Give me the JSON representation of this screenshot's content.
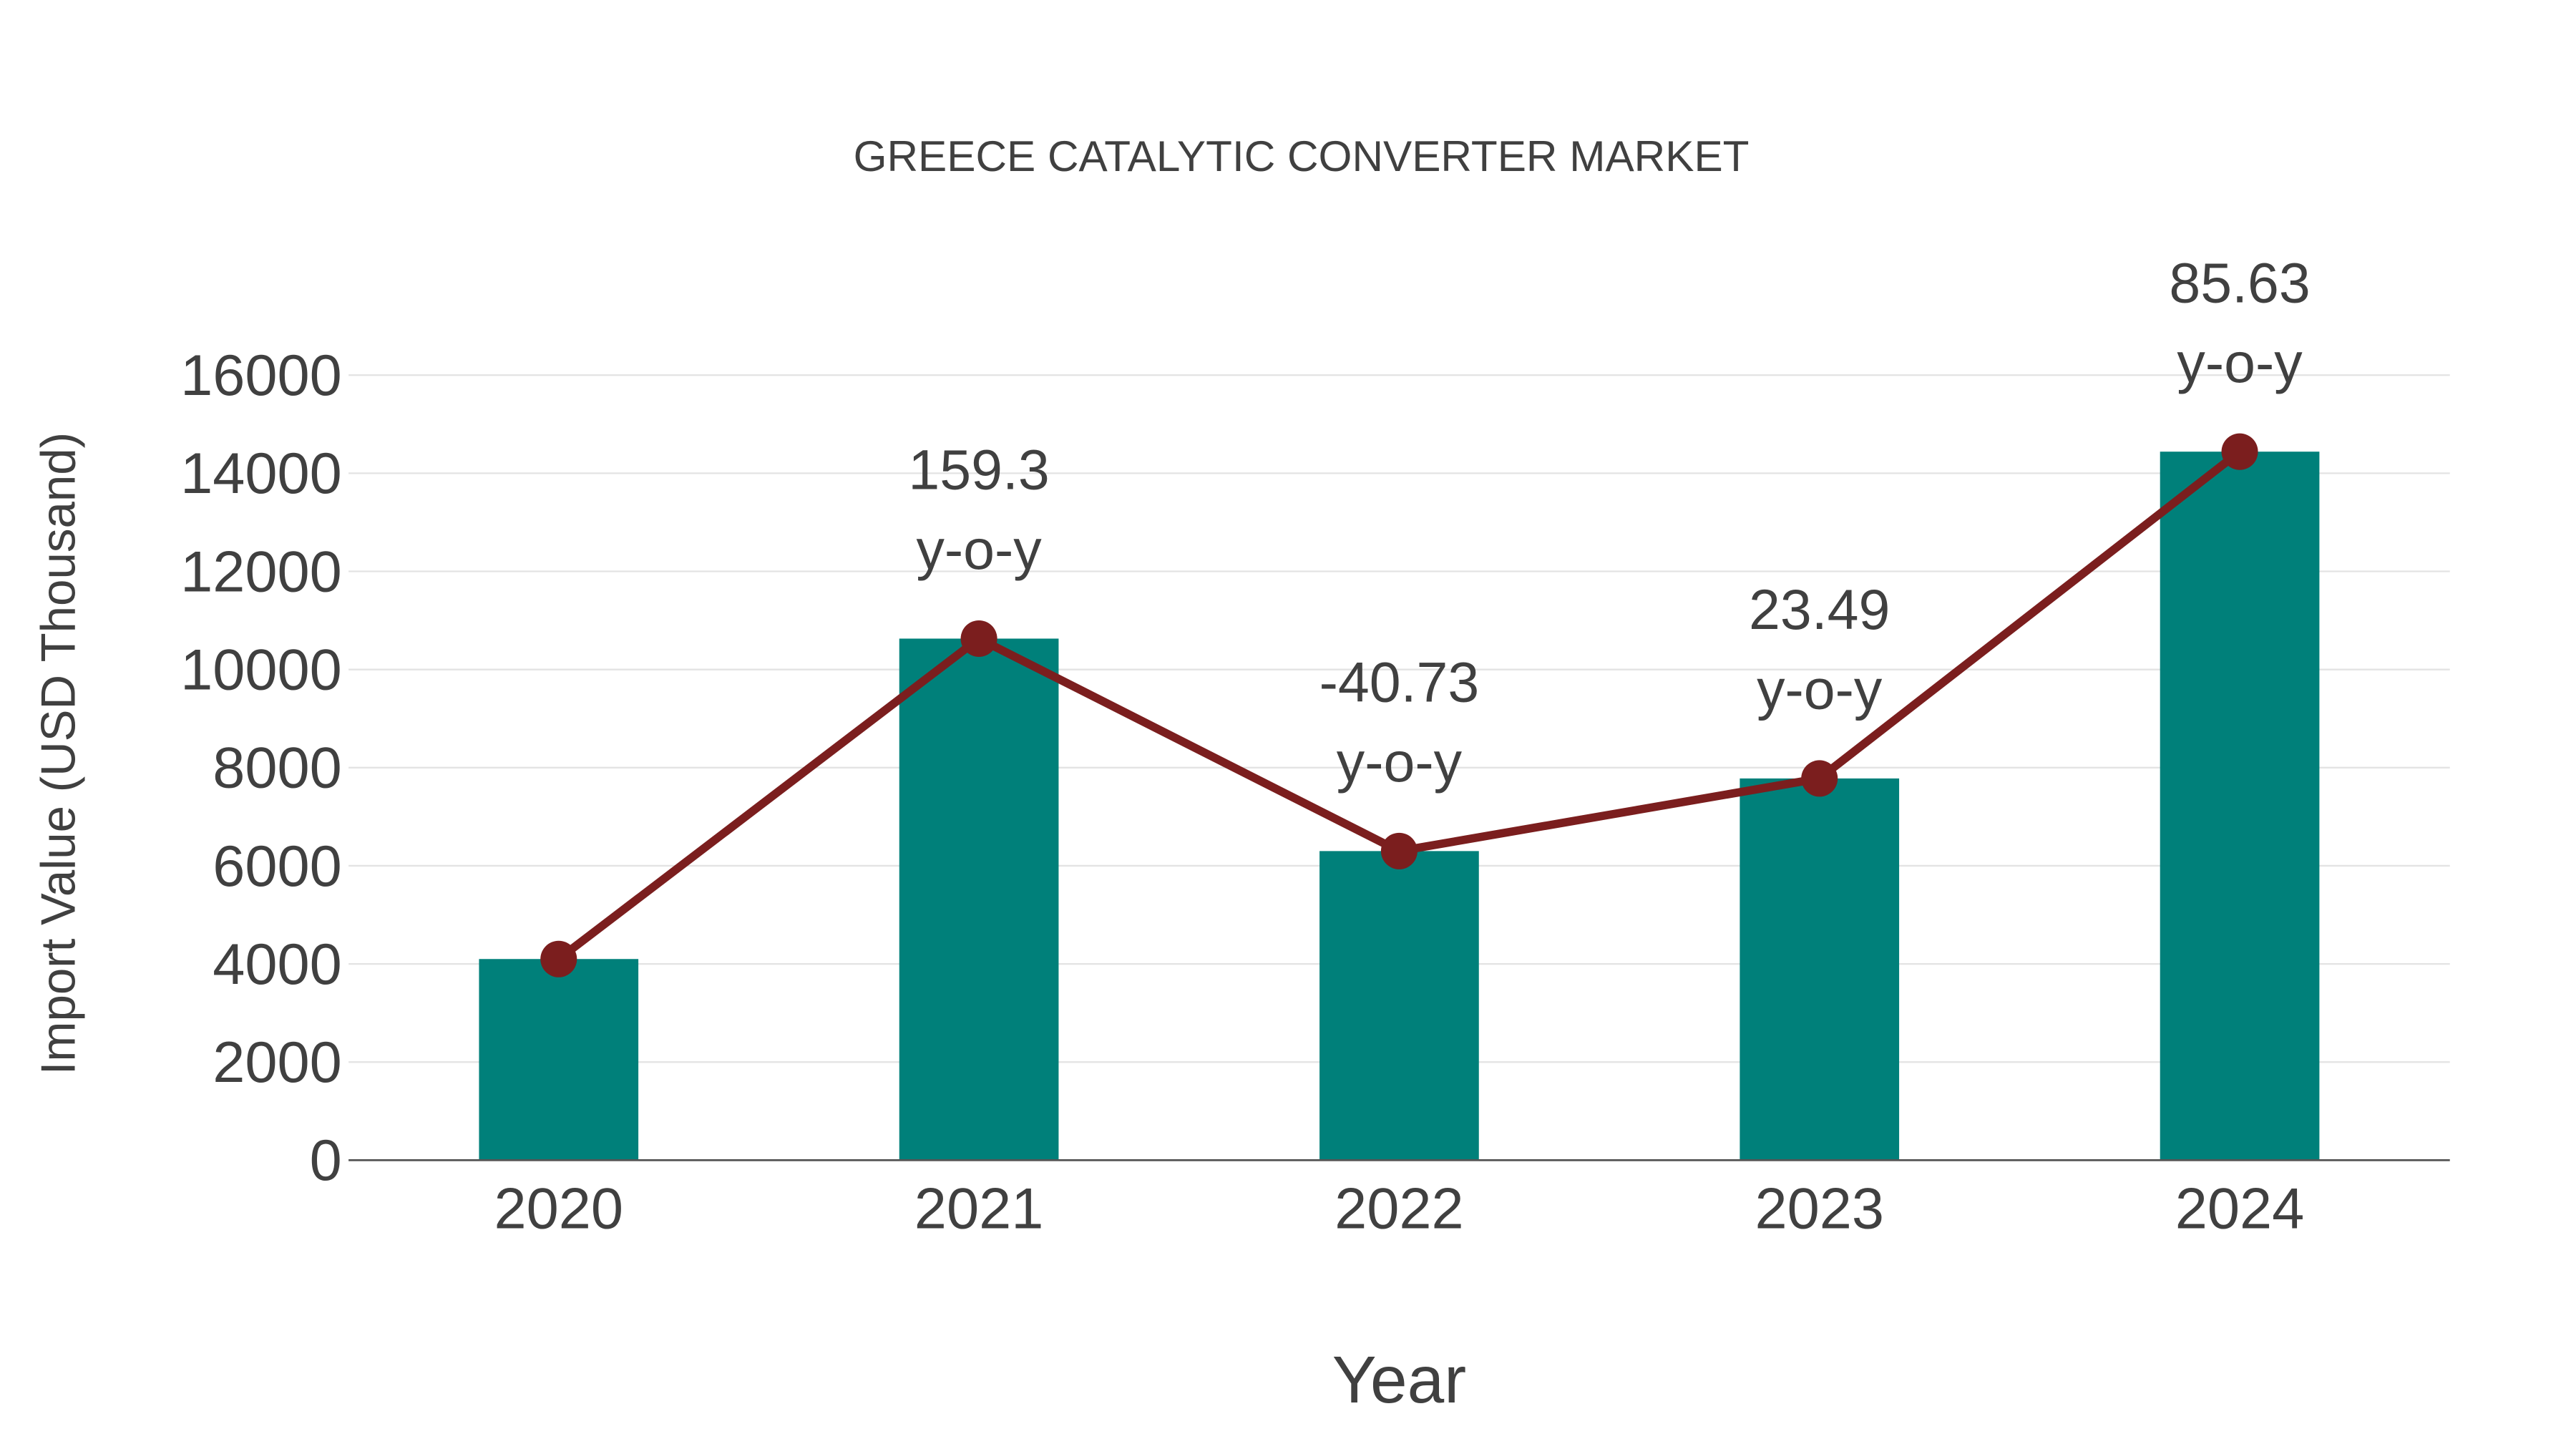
{
  "chart_data": {
    "type": "bar",
    "title": "GREECE CATALYTIC CONVERTER MARKET",
    "xlabel": "Year",
    "ylabel": "Import Value (USD Thousand)",
    "categories": [
      "2020",
      "2021",
      "2022",
      "2023",
      "2024"
    ],
    "values": [
      4100,
      10630,
      6300,
      7780,
      14440
    ],
    "ylim": [
      0,
      16000
    ],
    "yticks": [
      0,
      2000,
      4000,
      6000,
      8000,
      10000,
      12000,
      14000,
      16000
    ],
    "grid": true,
    "series": [
      {
        "name": "Import Value",
        "type": "bar",
        "values": [
          4100,
          10630,
          6300,
          7780,
          14440
        ],
        "color": "#00807A"
      },
      {
        "name": "Trend",
        "type": "line",
        "values": [
          4100,
          10630,
          6300,
          7780,
          14440
        ],
        "color": "#7B1E1E"
      }
    ],
    "annotations": [
      {
        "category": "2021",
        "value": "159.3",
        "suffix": "y-o-y"
      },
      {
        "category": "2022",
        "value": "-40.73",
        "suffix": "y-o-y"
      },
      {
        "category": "2023",
        "value": "23.49",
        "suffix": "y-o-y"
      },
      {
        "category": "2024",
        "value": "85.63",
        "suffix": "y-o-y"
      }
    ]
  }
}
